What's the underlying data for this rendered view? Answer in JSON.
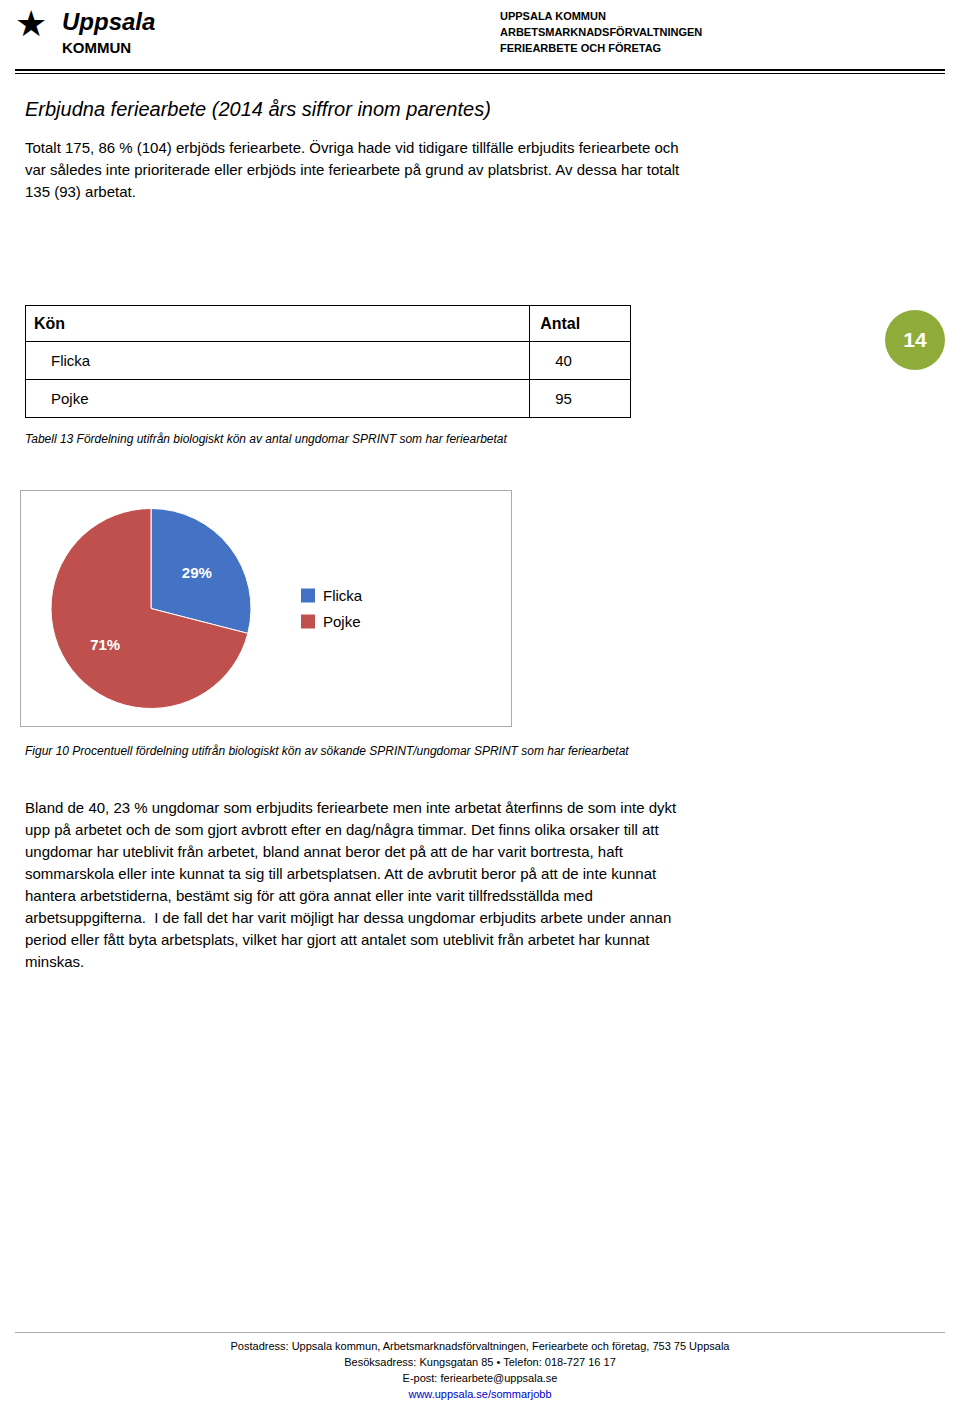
{
  "page": {
    "logo_symbol": "★",
    "logo_name": "Uppsala",
    "logo_sub": "KOMMUN",
    "header_lines": [
      "UPPSALA KOMMUN",
      "ARBETSMARKNADSFÖRVALTNINGEN",
      "FERIEARBETE OCH FÖRETAG"
    ],
    "main_title": "Erbjudna feriearbete (2014 års siffror inom parentes)",
    "intro_lines": [
      "Totalt 175, 86 % (104) erbjöds feriearbete. Övriga hade vid tidigare tillfälle erbjudits feriearbete och",
      "var således inte prioriterade eller erbjöds inte feriearbete på grund av platsbrist. Av dessa har totalt",
      "135 (93) arbetat."
    ],
    "table": {
      "headers": [
        "Kön",
        "Antal"
      ],
      "rows": [
        [
          "Flicka",
          "40"
        ],
        [
          "Pojke",
          "95"
        ]
      ],
      "caption": "Tabell 13 Fördelning utifrån biologiskt kön av antal ungdomar SPRINT som har feriearbetat"
    },
    "page_number": "14",
    "figure_caption": "Figur 10 Procentuell fördelning utifrån biologiskt kön av sökande SPRINT/ungdomar SPRINT som har feriearbetat",
    "body_lines": [
      "Bland de 40, 23 % ungdomar som erbjudits feriearbete men inte arbetat återfinns de som inte dykt",
      "upp på arbetet och de som gjort avbrott efter en dag/några timmar. Det finns olika orsaker till att",
      "ungdomar har uteblivit från arbetet, bland annat beror det på att de har varit bortresta, haft",
      "sommarskola eller inte kunnat ta sig till arbetsplatsen. Att de avbrutit beror på att de inte kunnat",
      "hantera arbetstiderna, bestämt sig för att göra annat eller inte varit tillfredsställda med",
      "arbetsuppgifterna.  I de fall det har varit möjligt har dessa ungdomar erbjudits arbete under annan",
      "period eller fått byta arbetsplats, vilket har gjort att antalet som uteblivit från arbetet har kunnat",
      "minskas."
    ],
    "footer_lines": [
      "Postadress: Uppsala kommun, Arbetsmarknadsförvaltningen, Feriearbete och företag, 753 75 Uppsala",
      "Besöksadress: Kungsgatan 85 • Telefon: 018-727 16 17",
      "E-post: feriearbete@uppsala.se",
      "www.uppsala.se/sommarjobb"
    ]
  },
  "chart_data": {
    "type": "pie",
    "categories": [
      "Flicka",
      "Pojke"
    ],
    "values": [
      29,
      71
    ],
    "value_labels": [
      "29%",
      "71%"
    ],
    "colors": [
      "#4472C4",
      "#C0504D"
    ],
    "data_labels": true,
    "legend": "right"
  }
}
